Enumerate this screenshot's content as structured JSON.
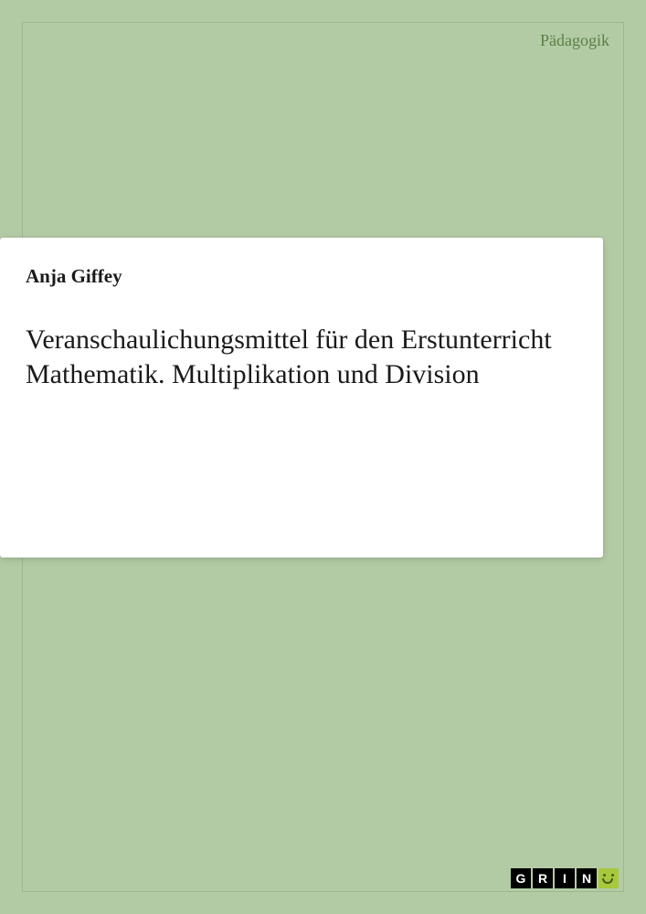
{
  "category": "Pädagogik",
  "author": "Anja Giffey",
  "title": "Veranschaulichungsmittel für den Erstunterricht Mathematik. Multiplikation und Division",
  "logo": {
    "letters": [
      "G",
      "R",
      "I",
      "N"
    ]
  },
  "colors": {
    "background": "#b3cba5",
    "inner_border": "#9cb88e",
    "category_text": "#5a8045",
    "panel_bg": "#ffffff",
    "text": "#1a1a1a",
    "logo_box_bg": "#000000",
    "logo_box_text": "#ffffff",
    "logo_smile_bg": "#a8c83c"
  }
}
